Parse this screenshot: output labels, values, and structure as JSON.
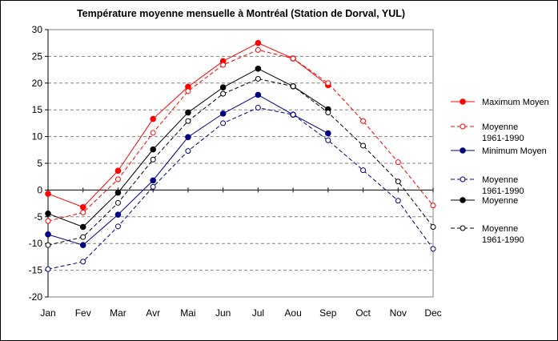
{
  "chart_data": {
    "type": "line",
    "title": "Température moyenne mensuelle à Montréal (Station de Dorval, YUL)",
    "xlabel": "",
    "ylabel": "",
    "categories": [
      "Jan",
      "Fev",
      "Mar",
      "Avr",
      "Mai",
      "Jun",
      "Jul",
      "Aou",
      "Sep",
      "Oct",
      "Nov",
      "Dec"
    ],
    "ylim": [
      -20,
      30
    ],
    "yticks": [
      "-20",
      "-15",
      "-10",
      "-5",
      "0",
      "5",
      "10",
      "15",
      "20",
      "25",
      "30"
    ],
    "grid": "horizontal dashed",
    "legend_position": "right",
    "series": [
      {
        "name": "Maximum Moyen",
        "color": "#ff0000",
        "line": "solid",
        "marker": "filled-circle",
        "values": [
          -0.7,
          -3.2,
          3.6,
          13.3,
          19.3,
          24.1,
          27.5,
          24.6,
          19.6,
          null,
          null,
          null
        ]
      },
      {
        "name": "Moyenne\n1961-1990",
        "color": "#ff0000",
        "line": "dashed",
        "marker": "open-circle",
        "values": [
          -5.8,
          -4.2,
          2.0,
          10.7,
          18.5,
          23.4,
          26.2,
          24.6,
          20.0,
          12.9,
          5.2,
          -2.9
        ]
      },
      {
        "name": "Minimum Moyen",
        "color": "#000080",
        "line": "solid",
        "marker": "filled-circle",
        "values": [
          -8.3,
          -10.3,
          -4.6,
          1.8,
          9.9,
          14.3,
          17.8,
          14.1,
          10.6,
          null,
          null,
          null
        ]
      },
      {
        "name": "Moyenne\n1961-1990",
        "color": "#000080",
        "line": "dashed",
        "marker": "open-circle",
        "values": [
          -14.8,
          -13.4,
          -6.8,
          0.6,
          7.3,
          12.5,
          15.4,
          14.1,
          9.3,
          3.7,
          -2.0,
          -11.0
        ]
      },
      {
        "name": "Moyenne",
        "color": "#000000",
        "line": "solid",
        "marker": "filled-circle",
        "values": [
          -4.4,
          -6.9,
          -0.5,
          7.6,
          14.5,
          19.2,
          22.7,
          19.4,
          15.1,
          null,
          null,
          null
        ]
      },
      {
        "name": "Moyenne\n1961-1990",
        "color": "#000000",
        "line": "dashed",
        "marker": "open-circle",
        "values": [
          -10.3,
          -8.8,
          -2.4,
          5.7,
          12.9,
          18.0,
          20.8,
          19.4,
          14.5,
          8.3,
          1.6,
          -6.9
        ]
      }
    ]
  }
}
